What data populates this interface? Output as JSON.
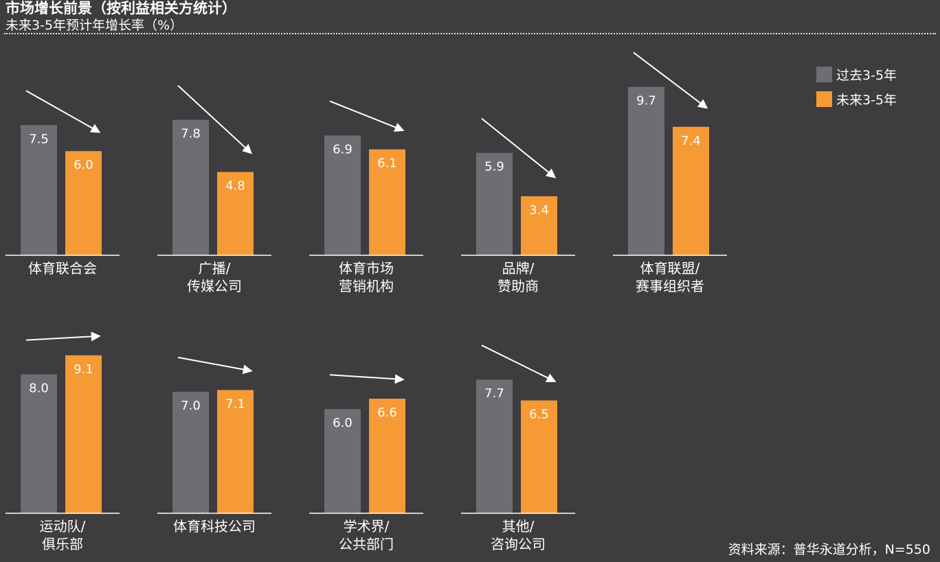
{
  "title": "市场增长前景（按利益相关方统计）",
  "subtitle": "未来3-5年预计年增长率（%）",
  "source": "资料来源：普华永道分析，N=550",
  "colors": {
    "past": "#6d6e71",
    "future": "#f59a34",
    "background": "#3d3c3e",
    "text": "#ffffff"
  },
  "legend": {
    "past_label": "过去3-5年",
    "future_label": "未来3-5年"
  },
  "chart_data": {
    "type": "bar",
    "title": "市场增长前景（按利益相关方统计）",
    "subtitle": "未来3-5年预计年增长率（%）",
    "ylabel": "",
    "legend_position": "top-right",
    "grid": false,
    "series": [
      {
        "name": "过去3-5年",
        "color": "#6d6e71"
      },
      {
        "name": "未来3-5年",
        "color": "#f59a34"
      }
    ],
    "panels": [
      {
        "category": [
          "体育联合会"
        ],
        "past": 7.5,
        "future": 6.0,
        "past_label": "7.5",
        "future_label": "6.0",
        "trend": "down"
      },
      {
        "category": [
          "广播/",
          "传媒公司"
        ],
        "past": 7.8,
        "future": 4.8,
        "past_label": "7.8",
        "future_label": "4.8",
        "trend": "down"
      },
      {
        "category": [
          "体育市场",
          "营销机构"
        ],
        "past": 6.9,
        "future": 6.1,
        "past_label": "6.9",
        "future_label": "6.1",
        "trend": "down"
      },
      {
        "category": [
          "品牌/",
          "赞助商"
        ],
        "past": 5.9,
        "future": 3.4,
        "past_label": "5.9",
        "future_label": "3.4",
        "trend": "down"
      },
      {
        "category": [
          "体育联盟/",
          "赛事组织者"
        ],
        "past": 9.7,
        "future": 7.4,
        "past_label": "9.7",
        "future_label": "7.4",
        "trend": "down"
      },
      {
        "category": [
          "运动队/",
          "俱乐部"
        ],
        "past": 8.0,
        "future": 9.1,
        "past_label": "8.0",
        "future_label": "9.1",
        "trend": "up"
      },
      {
        "category": [
          "体育科技公司"
        ],
        "past": 7.0,
        "future": 7.1,
        "past_label": "7.0",
        "future_label": "7.1",
        "trend": "up"
      },
      {
        "category": [
          "学术界/",
          "公共部门"
        ],
        "past": 6.0,
        "future": 6.6,
        "past_label": "6.0",
        "future_label": "6.6",
        "trend": "up"
      },
      {
        "category": [
          "其他/",
          "咨询公司"
        ],
        "past": 7.7,
        "future": 6.5,
        "past_label": "7.7",
        "future_label": "6.5",
        "trend": "down"
      }
    ]
  }
}
